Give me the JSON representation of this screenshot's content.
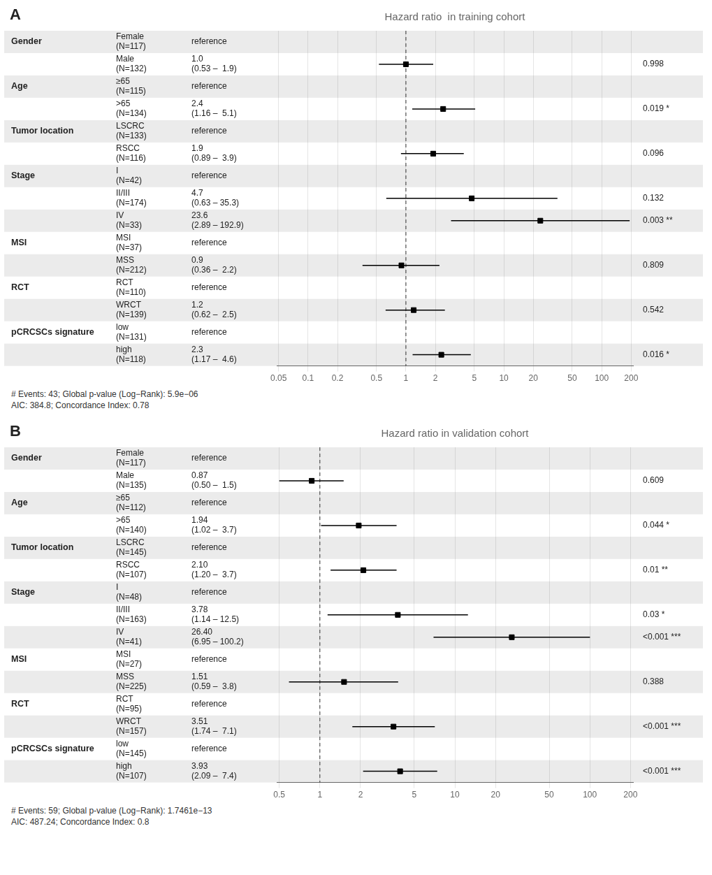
{
  "chart_data": [
    {
      "type": "forest",
      "panel_label": "A",
      "title": "Hazard ratio  in training cohort",
      "footnote": "# Events: 43; Global p-value (Log−Rank): 5.9e−06\nAIC: 384.8; Concordance Index: 0.78",
      "groups": [
        "Gender",
        null,
        "Age",
        null,
        "Tumor location",
        null,
        "Stage",
        null,
        null,
        "MSI",
        null,
        "RCT",
        null,
        "pCRCSCs signature",
        null
      ],
      "categories": [
        "Female\n(N=117)",
        "Male\n(N=132)",
        "≥65\n(N=115)",
        ">65\n(N=134)",
        "LSCRC\n(N=133)",
        "RSCC\n(N=116)",
        "I\n(N=42)",
        "II/III\n(N=174)",
        "IV\n(N=33)",
        "MSI\n(N=37)",
        "MSS\n(N=212)",
        "RCT\n(N=110)",
        "WRCT\n(N=139)",
        "low\n(N=131)",
        "high\n(N=118)"
      ],
      "values": [
        null,
        1.0,
        null,
        2.4,
        null,
        1.9,
        null,
        4.7,
        23.6,
        null,
        0.9,
        null,
        1.2,
        null,
        2.3
      ],
      "ci_low": [
        null,
        0.53,
        null,
        1.16,
        null,
        0.89,
        null,
        0.63,
        2.89,
        null,
        0.36,
        null,
        0.62,
        null,
        1.17
      ],
      "ci_high": [
        null,
        1.9,
        null,
        5.1,
        null,
        3.9,
        null,
        35.3,
        192.9,
        null,
        2.2,
        null,
        2.5,
        null,
        4.6
      ],
      "value_labels": [
        "reference",
        "1.0\n(0.53 –  1.9)",
        "reference",
        "2.4\n(1.16 –  5.1)",
        "reference",
        "1.9\n(0.89 –  3.9)",
        "reference",
        "4.7\n(0.63 – 35.3)",
        "23.6\n(2.89 – 192.9)",
        "reference",
        "0.9\n(0.36 –  2.2)",
        "reference",
        "1.2\n(0.62 –  2.5)",
        "reference",
        "2.3\n(1.17 –  4.6)"
      ],
      "p_values": [
        null,
        "0.998",
        null,
        "0.019 *",
        null,
        "0.096",
        null,
        "0.132",
        "0.003 **",
        null,
        "0.809",
        null,
        "0.542",
        null,
        "0.016 *"
      ],
      "reference_line": 1,
      "color": "#000000",
      "log": "x",
      "grid": true,
      "data_labels": true,
      "xlim": [
        0.047863009232263824,
        208.92961308540396
      ],
      "xticks": [
        0.05,
        0.1,
        0.2,
        0.5,
        1,
        2,
        5,
        10,
        20,
        50,
        100,
        200
      ]
    },
    {
      "type": "forest",
      "panel_label": "B",
      "title": "Hazard ratio in validation cohort",
      "footnote": "# Events: 59; Global p-value (Log−Rank): 1.7461e−13\nAIC: 487.24; Concordance Index: 0.8",
      "groups": [
        "Gender",
        null,
        "Age",
        null,
        "Tumor location",
        null,
        "Stage",
        null,
        null,
        "MSI",
        null,
        "RCT",
        null,
        "pCRCSCs signature",
        null
      ],
      "categories": [
        "Female\n(N=117)",
        "Male\n(N=135)",
        "≥65\n(N=112)",
        ">65\n(N=140)",
        "LSCRC\n(N=145)",
        "RSCC\n(N=107)",
        "I\n(N=48)",
        "II/III\n(N=163)",
        "IV\n(N=41)",
        "MSI\n(N=27)",
        "MSS\n(N=225)",
        "RCT\n(N=95)",
        "WRCT\n(N=157)",
        "low\n(N=145)",
        "high\n(N=107)"
      ],
      "values": [
        null,
        0.87,
        null,
        1.94,
        null,
        2.1,
        null,
        3.78,
        26.4,
        null,
        1.51,
        null,
        3.51,
        null,
        3.93
      ],
      "ci_low": [
        null,
        0.5,
        null,
        1.02,
        null,
        1.2,
        null,
        1.14,
        6.95,
        null,
        0.59,
        null,
        1.74,
        null,
        2.09
      ],
      "ci_high": [
        null,
        1.5,
        null,
        3.7,
        null,
        3.7,
        null,
        12.5,
        100.2,
        null,
        3.8,
        null,
        7.1,
        null,
        7.4
      ],
      "value_labels": [
        "reference",
        "0.87\n(0.50 –  1.5)",
        "reference",
        "1.94\n(1.02 –  3.7)",
        "reference",
        "2.10\n(1.20 –  3.7)",
        "reference",
        "3.78\n(1.14 – 12.5)",
        "26.40\n(6.95 – 100.2)",
        "reference",
        "1.51\n(0.59 –  3.8)",
        "reference",
        "3.51\n(1.74 –  7.1)",
        "reference",
        "3.93\n(2.09 –  7.4)"
      ],
      "p_values": [
        null,
        "0.609",
        null,
        "0.044 *",
        null,
        "0.01 **",
        null,
        "0.03 *",
        "<0.001 ***",
        null,
        "0.388",
        null,
        "<0.001 ***",
        null,
        "<0.001 ***"
      ],
      "reference_line": 1,
      "color": "#000000",
      "log": "x",
      "grid": true,
      "data_labels": true,
      "xlim": [
        0.47863009232263826,
        208.92961308540396
      ],
      "xticks": [
        0.5,
        1,
        2,
        5,
        10,
        20,
        50,
        100,
        200
      ]
    }
  ]
}
